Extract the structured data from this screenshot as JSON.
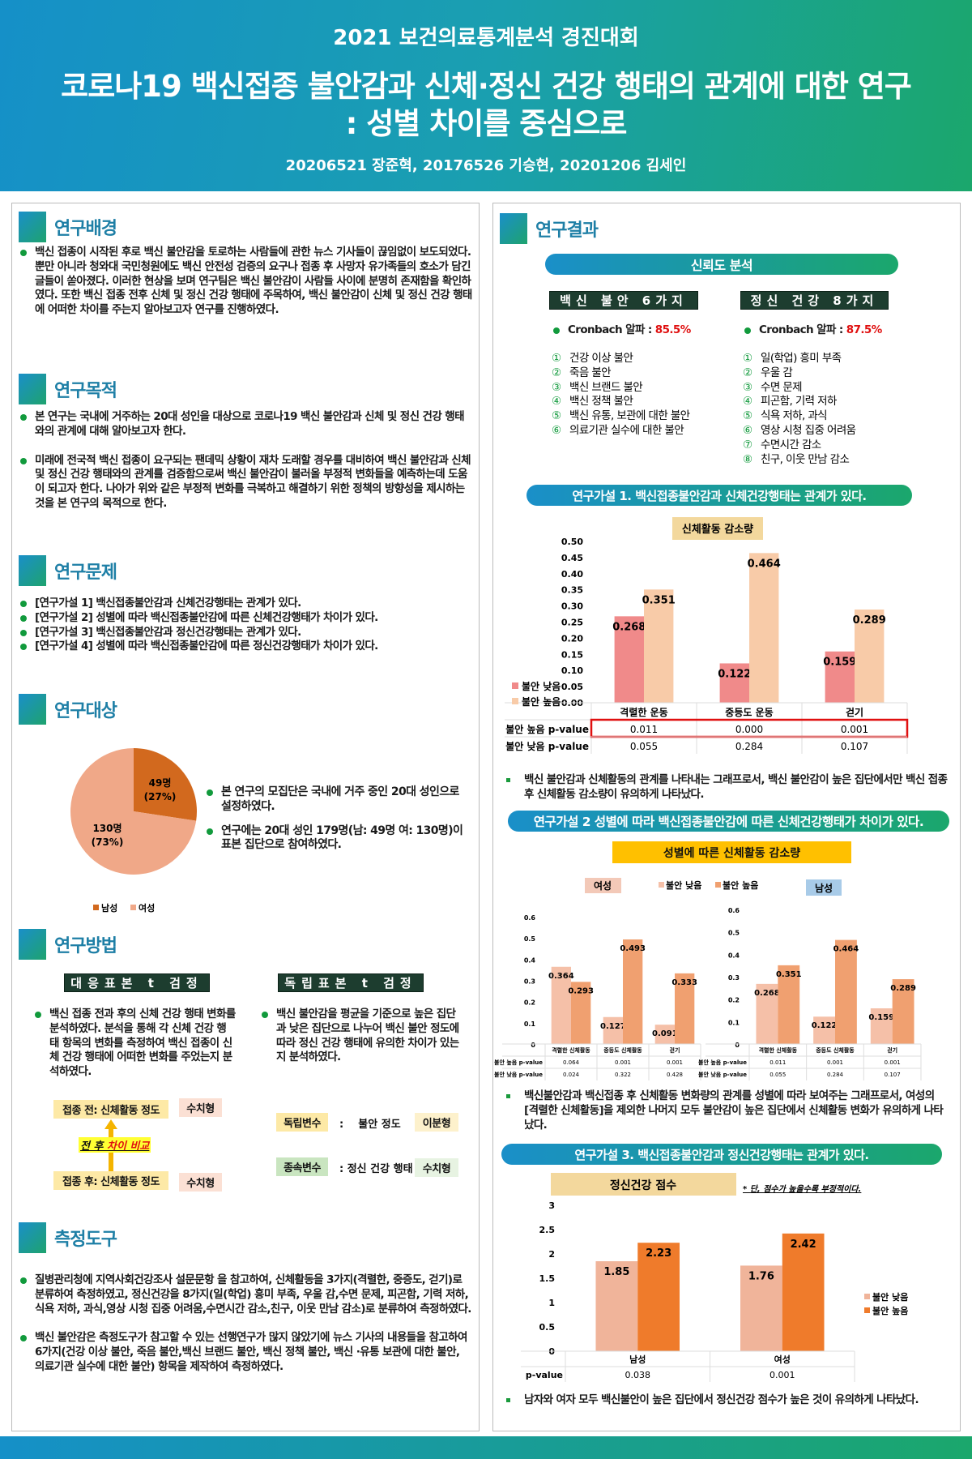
{
  "header": {
    "contest": "2021 보건의료통계분석 경진대회",
    "title_line1": "코로나19 백신접종 불안감과 신체·정신 건강 행태의 관계에 대한 연구",
    "title_line2": ": 성별 차이를 중심으로",
    "authors": "20206521 장준혁, 20176526 기승현, 20201206 김세인"
  },
  "colors": {
    "brand_blue": "#1a8fc9",
    "brand_green": "#1ba76c",
    "bullet": "#119a3c",
    "highlight_red": "#e01010"
  },
  "left": {
    "background": {
      "title": "연구배경",
      "text": "백신 접종이 시작된 후로 백신 불안감을 토로하는 사람들에 관한 뉴스 기사들이 끊임없이 보도되었다. 뿐만 아니라 청와대 국민청원에도 백신 안전성 검증의 요구나 접종 후 사망자 유가족들의 호소가 담긴 글들이 쏟아졌다. 이러한 현상을 보며 연구팀은 백신 불안감이 사람들 사이에 분명히 존재함을 확인하였다. 또한 백신 접종 전후 신체 및 정신 건강 행태에 주목하여, 백신 불안감이 신체 및 정신 건강 행태에 어떠한 차이를 주는지 알아보고자 연구를 진행하였다."
    },
    "purpose": {
      "title": "연구목적",
      "items": [
        "본 연구는 국내에 거주하는 20대 성인을 대상으로 코로나19 백신 불안감과 신체 및 정신 건강 행태와의 관계에 대해 알아보고자 한다.",
        "미래에 전국적 백신 접종이 요구되는 팬데믹 상황이 재차 도래할 경우를 대비하여 백신 불안감과 신체 및 정신 건강 행태와의 관계를 검증함으로써 백신 불안감이 불러올 부정적 변화들을 예측하는데 도움이 되고자 한다. 나아가 위와 같은 부정적 변화를 극복하고 해결하기 위한 정책의 방향성을 제시하는 것을 본 연구의 목적으로 한다."
      ]
    },
    "problem": {
      "title": "연구문제",
      "items": [
        "[연구가설 1]  백신접종불안감과 신체건강행태는 관계가 있다.",
        "[연구가설 2]  성별에 따라 백신접종불안감에 따른 신체건강행태가 차이가 있다.",
        "[연구가설 3]  백신접종불안감과 정신건강행태는 관계가 있다.",
        "[연구가설 4]  성별에 따라 백신접종불안감에 따른 정신건강행태가 차이가 있다."
      ]
    },
    "subject": {
      "title": "연구대상",
      "items": [
        "본 연구의 모집단은 국내에 거주 중인 20대 성인으로 설정하였다.",
        "연구에는 20대 성인 179명(남: 49명 여: 130명)이 표본 집단으로 참여하였다."
      ],
      "pie": {
        "type": "pie",
        "slices": [
          {
            "name": "남성",
            "value": 49,
            "label": "49명",
            "pct": "(27%)",
            "color": "#d2691e"
          },
          {
            "name": "여성",
            "value": 130,
            "label": "130명",
            "pct": "(73%)",
            "color": "#f0a888"
          }
        ],
        "legend": "bottom"
      }
    },
    "method": {
      "title": "연구방법",
      "paired_label": "대응표본 t 검정",
      "indep_label": "독립표본 t 검정",
      "paired_text": "백신 접종 전과 후의 신체 건강 행태 변화를 분석하였다. 분석을 통해 각 신체 건강 행태 항목의 변화를 측정하여 백신 접종이 신체 건강 행태에 어떠한 변화를 주었는지 분석하였다.",
      "indep_text": "백신 불안감을 평균을 기준으로 높은 집단과 낮은 집단으로 나누어 백신 불안 정도에 따라 정신 건강 행태에 유의한 차이가 있는지 분석하였다.",
      "before": "접종 전: 신체활동 정도",
      "after": "접종 후: 신체활동 정도",
      "numeric": "수치형",
      "compare_a": "전 후 ",
      "compare_b": "차이 비교",
      "iv": "독립변수",
      "iv_value": ":    불안 정도",
      "binary": "이분형",
      "dv": "종속변수",
      "dv_value": ": 정신 건강 행태"
    },
    "tools": {
      "title": "측정도구",
      "items": [
        "질병관리청에 지역사회건강조사 설문문항 을 참고하여, 신체활동을 3가지(격렬한, 중증도, 걷기)로 분류하여 측정하였고, 정신건강을 8가지(일(학업) 흥미 부족, 우울 감,수면 문제, 피곤함, 기력 저하, 식욕 저하, 과식,영상 시청 집중 어려움,수면시간 감소,친구, 이웃 만남 감소)로 분류하여 측정하였다.",
        "백신 불안감은 측정도구가 참고할 수 있는 선행연구가 많지 않았기에 뉴스 기사의 내용들을 참고하여 6가지(건강 이상 불안, 죽음 불안,백신 브랜드 불안, 백신 정책 불안, 백신 ·유통 보관에 대한 불안, 의료기관 실수에 대한 불안) 항목을 제작하여 측정하였다."
      ]
    }
  },
  "right": {
    "title": "연구결과",
    "reliability": {
      "title": "신뢰도 분석",
      "vaccine": {
        "label": "백신 불안 6가지",
        "alpha_label": "Cronbach 알파 : ",
        "alpha": "85.5%",
        "items": [
          "건강 이상 불안",
          "죽음 불안",
          "백신 브랜드 불안",
          "백신 정책 불안",
          "백신 유통, 보관에 대한 불안",
          "의료기관 실수에 대한 불안"
        ]
      },
      "mental": {
        "label": "정신 건강 8가지",
        "alpha_label": "Cronbach 알파 : ",
        "alpha": "87.5%",
        "items": [
          "일(학업) 흥미 부족",
          "우울 감",
          "수면 문제",
          "피곤함, 기력 저하",
          "식욕 저하, 과식",
          "영상 시청 집중 어려움",
          "수면시간 감소",
          "친구, 이웃 만남 감소"
        ]
      },
      "markers": [
        "①",
        "②",
        "③",
        "④",
        "⑤",
        "⑥",
        "⑦",
        "⑧"
      ]
    },
    "h1": {
      "title": "연구가설 1. 백신접종불안감과 신체건강행태는 관계가 있다.",
      "caption": "백신 불안감과 신체활동의 관계를 나타내는 그래프로서, 백신 불안감이 높은 집단에서만 백신 접종 후 신체활동 감소량이 유의하게 나타났다."
    },
    "h2": {
      "title": "연구가설 2 성별에 따라 백신접종불안감에 따른 신체건강행태가 차이가 있다.",
      "chart_title": "성별에 따른 신체활동 감소량",
      "caption": "백신불안감과 백신접종 후 신체활동 변화량의 관계를 성별에 따라 보여주는 그래프로서, 여성의 [격렬한 신체활동]을 제외한 나머지 모두 불안감이 높은 집단에서 신체활동 변화가 유의하게 나타났다."
    },
    "h3": {
      "title": "연구가설 3. 백신접종불안감과 정신건강행태는 관계가 있다.",
      "caption": "남자와 여자 모두 백신불안이 높은 집단에서 정신건강 점수가 높은 것이 유의하게 나타났다."
    }
  },
  "chart_data": [
    {
      "type": "bar",
      "title": "신체활동 감소량",
      "categories": [
        "격렬한 운동",
        "중등도 운동",
        "걷기"
      ],
      "ylim": [
        0,
        0.5
      ],
      "yticks": [
        "0.00",
        "0.05",
        "0.10",
        "0.15",
        "0.20",
        "0.25",
        "0.30",
        "0.35",
        "0.40",
        "0.45",
        "0.50"
      ],
      "legend": "left",
      "series": [
        {
          "name": "불안 낮음",
          "values": [
            0.268,
            0.122,
            0.159
          ],
          "color": "#f08a8a"
        },
        {
          "name": "불안 높음",
          "values": [
            0.351,
            0.464,
            0.289
          ],
          "color": "#f8cba8"
        }
      ],
      "table": [
        {
          "label": "불안 높음 p-value",
          "values": [
            "0.011",
            "0.000",
            "0.001"
          ],
          "highlight": true
        },
        {
          "label": "불안 낮음 p-value",
          "values": [
            "0.055",
            "0.284",
            "0.107"
          ]
        }
      ]
    },
    {
      "type": "bar",
      "title": "여성",
      "categories": [
        "격렬한 신체활동",
        "중등도 신체활동",
        "걷기"
      ],
      "ylim": [
        0,
        0.6
      ],
      "yticks": [
        "0",
        "0.1",
        "0.2",
        "0.3",
        "0.4",
        "0.5",
        "0.6"
      ],
      "legend": "top",
      "series": [
        {
          "name": "불안 낮음",
          "values": [
            0.364,
            0.127,
            0.091
          ],
          "color": "#f5c0a8"
        },
        {
          "name": "불안 높음",
          "values": [
            0.293,
            0.493,
            0.333
          ],
          "color": "#f0a070"
        }
      ],
      "table": [
        {
          "label": "불안 높음 p-value",
          "values": [
            "0.064",
            "0.001",
            "0.001"
          ]
        },
        {
          "label": "불안 낮음 p-value",
          "values": [
            "0.024",
            "0.322",
            "0.428"
          ]
        }
      ]
    },
    {
      "type": "bar",
      "title": "남성",
      "categories": [
        "격렬한 신체활동",
        "중등도 신체활동",
        "걷기"
      ],
      "ylim": [
        0,
        0.6
      ],
      "yticks": [
        "0",
        "0.1",
        "0.2",
        "0.3",
        "0.4",
        "0.5",
        "0.6"
      ],
      "series": [
        {
          "name": "불안 낮음",
          "values": [
            0.268,
            0.122,
            0.159
          ],
          "color": "#f5c0a8"
        },
        {
          "name": "불안 높음",
          "values": [
            0.351,
            0.464,
            0.289
          ],
          "color": "#f0a070"
        }
      ],
      "table": [
        {
          "label": "불안 높음 p-value",
          "values": [
            "0.011",
            "0.001",
            "0.001"
          ]
        },
        {
          "label": "불안 낮음 p-value",
          "values": [
            "0.055",
            "0.284",
            "0.107"
          ]
        }
      ]
    },
    {
      "type": "bar",
      "title": "정신건강 점수",
      "note": "* 단, 점수가 높을수록 부정적이다.",
      "categories": [
        "남성",
        "여성"
      ],
      "ylim": [
        0,
        3
      ],
      "yticks": [
        "0",
        "0.5",
        "1",
        "1.5",
        "2",
        "2.5",
        "3"
      ],
      "legend": "right",
      "series": [
        {
          "name": "불안 낮음",
          "values": [
            1.85,
            1.76
          ],
          "color": "#f0b49a"
        },
        {
          "name": "불안 높음",
          "values": [
            2.23,
            2.42
          ],
          "color": "#ef7b2b"
        }
      ],
      "table": [
        {
          "label": "p-value",
          "values": [
            "0.038",
            "0.001"
          ]
        }
      ]
    }
  ]
}
